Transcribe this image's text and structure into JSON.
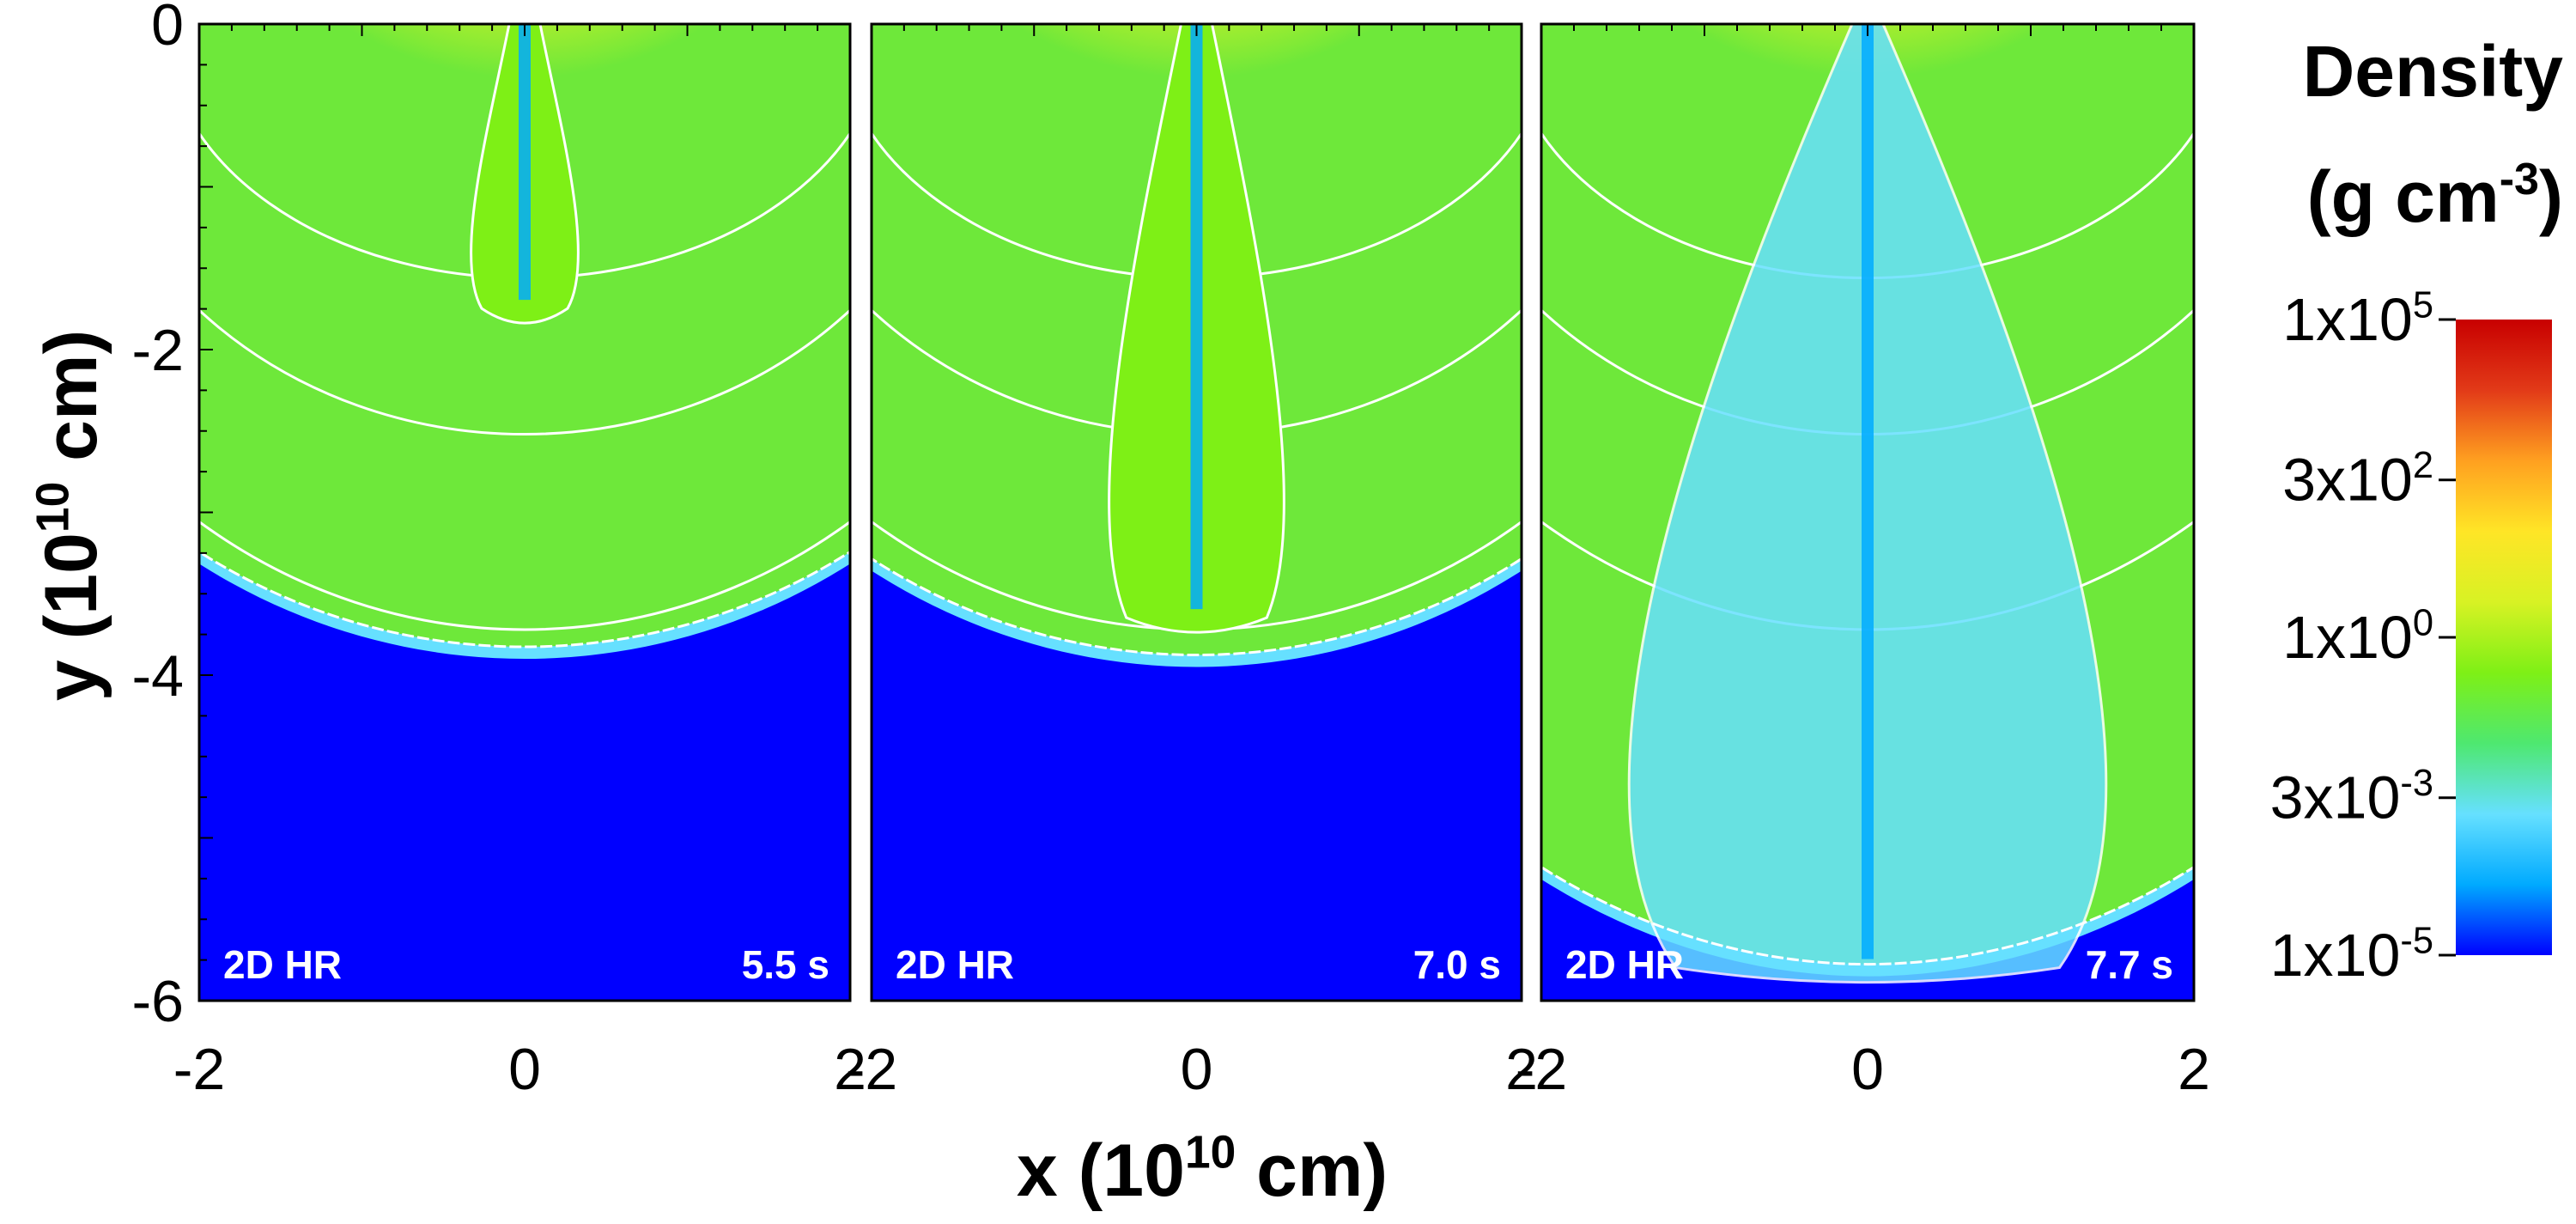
{
  "chart_data": {
    "type": "heatmap",
    "title": "",
    "xlabel": "x (10^10 cm)",
    "ylabel": "y (10^10 cm)",
    "xlim": [
      -2,
      2
    ],
    "ylim": [
      -6,
      0
    ],
    "x_ticks": [
      "-2",
      "0",
      "2"
    ],
    "y_ticks": [
      "0",
      "-2",
      "-4",
      "-6"
    ],
    "colorbar": {
      "title_line1": "Density",
      "title_line2": "(g cm-3)",
      "scale": "log",
      "range": [
        1e-05,
        100000.0
      ],
      "ticks": [
        {
          "label": "1x10^5",
          "value": 100000
        },
        {
          "label": "3x10^2",
          "value": 300
        },
        {
          "label": "1x10^0",
          "value": 1
        },
        {
          "label": "3x10^-3",
          "value": 0.003
        },
        {
          "label": "1x10^-5",
          "value": 1e-05
        }
      ],
      "colors": [
        "#0000ff",
        "#00aaff",
        "#66e0ff",
        "#4ee870",
        "#7ef016",
        "#d8f224",
        "#ffe526",
        "#ffa020",
        "#e23a18",
        "#c80000"
      ]
    },
    "panels": [
      {
        "label": "2D HR",
        "time": "5.5 s",
        "shock_depth": -3.9,
        "jet_head_depth": -1.8
      },
      {
        "label": "2D HR",
        "time": "7.0 s",
        "shock_depth": -3.95,
        "jet_head_depth": -3.7
      },
      {
        "label": "2D HR",
        "time": "7.7 s",
        "shock_depth": -5.85,
        "jet_head_depth": -5.85
      }
    ],
    "colors": {
      "background_low": "#0000ff",
      "ambient": "#6ee83a",
      "dense_core": "#e23a18",
      "contour": "#ffffff"
    }
  }
}
